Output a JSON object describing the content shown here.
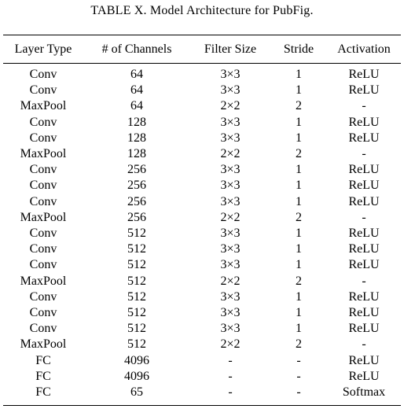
{
  "caption": "TABLE X. Model Architecture for PubFig.",
  "table": {
    "headers": [
      "Layer Type",
      "# of Channels",
      "Filter Size",
      "Stride",
      "Activation"
    ],
    "rows": [
      [
        "Conv",
        "64",
        "3×3",
        "1",
        "ReLU"
      ],
      [
        "Conv",
        "64",
        "3×3",
        "1",
        "ReLU"
      ],
      [
        "MaxPool",
        "64",
        "2×2",
        "2",
        "-"
      ],
      [
        "Conv",
        "128",
        "3×3",
        "1",
        "ReLU"
      ],
      [
        "Conv",
        "128",
        "3×3",
        "1",
        "ReLU"
      ],
      [
        "MaxPool",
        "128",
        "2×2",
        "2",
        "-"
      ],
      [
        "Conv",
        "256",
        "3×3",
        "1",
        "ReLU"
      ],
      [
        "Conv",
        "256",
        "3×3",
        "1",
        "ReLU"
      ],
      [
        "Conv",
        "256",
        "3×3",
        "1",
        "ReLU"
      ],
      [
        "MaxPool",
        "256",
        "2×2",
        "2",
        "-"
      ],
      [
        "Conv",
        "512",
        "3×3",
        "1",
        "ReLU"
      ],
      [
        "Conv",
        "512",
        "3×3",
        "1",
        "ReLU"
      ],
      [
        "Conv",
        "512",
        "3×3",
        "1",
        "ReLU"
      ],
      [
        "MaxPool",
        "512",
        "2×2",
        "2",
        "-"
      ],
      [
        "Conv",
        "512",
        "3×3",
        "1",
        "ReLU"
      ],
      [
        "Conv",
        "512",
        "3×3",
        "1",
        "ReLU"
      ],
      [
        "Conv",
        "512",
        "3×3",
        "1",
        "ReLU"
      ],
      [
        "MaxPool",
        "512",
        "2×2",
        "2",
        "-"
      ],
      [
        "FC",
        "4096",
        "-",
        "-",
        "ReLU"
      ],
      [
        "FC",
        "4096",
        "-",
        "-",
        "ReLU"
      ],
      [
        "FC",
        "65",
        "-",
        "-",
        "Softmax"
      ]
    ]
  }
}
